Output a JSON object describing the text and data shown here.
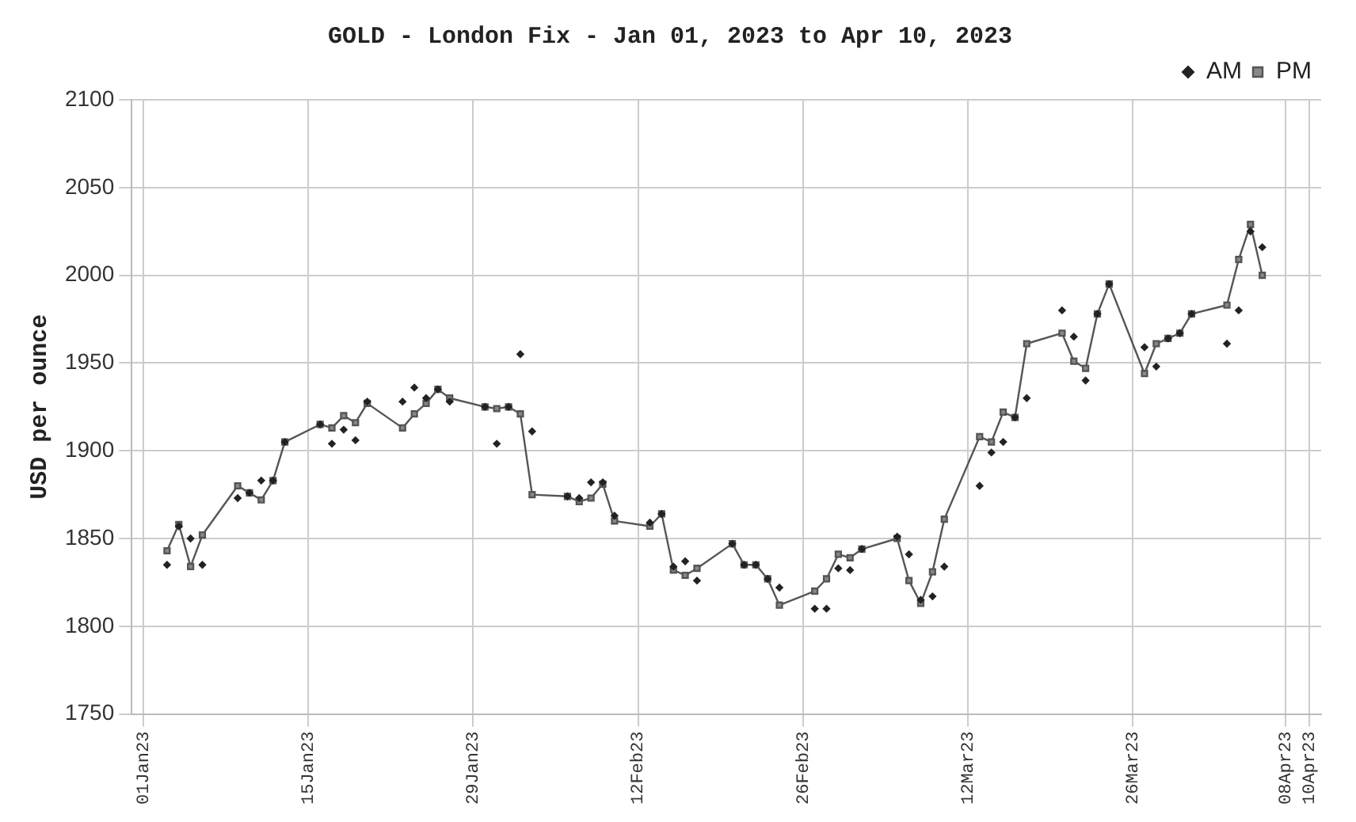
{
  "chart_data": {
    "type": "line",
    "title": "GOLD - London Fix - Jan 01, 2023 to Apr 10, 2023",
    "ylabel": "USD per ounce",
    "x": [
      "2023-01-03",
      "2023-01-04",
      "2023-01-05",
      "2023-01-06",
      "2023-01-09",
      "2023-01-10",
      "2023-01-11",
      "2023-01-12",
      "2023-01-13",
      "2023-01-16",
      "2023-01-17",
      "2023-01-18",
      "2023-01-19",
      "2023-01-20",
      "2023-01-23",
      "2023-01-24",
      "2023-01-25",
      "2023-01-26",
      "2023-01-27",
      "2023-01-30",
      "2023-01-31",
      "2023-02-01",
      "2023-02-02",
      "2023-02-03",
      "2023-02-06",
      "2023-02-07",
      "2023-02-08",
      "2023-02-09",
      "2023-02-10",
      "2023-02-13",
      "2023-02-14",
      "2023-02-15",
      "2023-02-16",
      "2023-02-17",
      "2023-02-20",
      "2023-02-21",
      "2023-02-22",
      "2023-02-23",
      "2023-02-24",
      "2023-02-27",
      "2023-02-28",
      "2023-03-01",
      "2023-03-02",
      "2023-03-03",
      "2023-03-06",
      "2023-03-07",
      "2023-03-08",
      "2023-03-09",
      "2023-03-10",
      "2023-03-13",
      "2023-03-14",
      "2023-03-15",
      "2023-03-16",
      "2023-03-17",
      "2023-03-20",
      "2023-03-21",
      "2023-03-22",
      "2023-03-23",
      "2023-03-24",
      "2023-03-27",
      "2023-03-28",
      "2023-03-29",
      "2023-03-30",
      "2023-03-31",
      "2023-04-03",
      "2023-04-04",
      "2023-04-05",
      "2023-04-06"
    ],
    "series": [
      {
        "name": "AM",
        "type": "scatter",
        "marker": "diamond",
        "color": "#222222",
        "values": [
          1835,
          1857,
          1850,
          1835,
          1873,
          1876,
          1883,
          1883,
          1905,
          1915,
          1904,
          1912,
          1906,
          1928,
          1928,
          1936,
          1930,
          1935,
          1928,
          1925,
          1904,
          1925,
          1955,
          1911,
          1874,
          1873,
          1882,
          1882,
          1863,
          1859,
          1864,
          1834,
          1837,
          1826,
          1847,
          1835,
          1835,
          1827,
          1822,
          1810,
          1810,
          1833,
          1832,
          1844,
          1851,
          1841,
          1815,
          1817,
          1834,
          1880,
          1899,
          1905,
          1919,
          1930,
          1980,
          1965,
          1940,
          1978,
          1995,
          1959,
          1948,
          1964,
          1967,
          1978,
          1961,
          1980,
          2025,
          2016
        ]
      },
      {
        "name": "PM",
        "type": "line",
        "marker": "square",
        "line_style": "solid",
        "color": "#555555",
        "values": [
          1843,
          1858,
          1834,
          1852,
          1880,
          1876,
          1872,
          1883,
          1905,
          1915,
          1913,
          1920,
          1916,
          1927,
          1913,
          1921,
          1927,
          1935,
          1930,
          1925,
          1924,
          1925,
          1921,
          1875,
          1874,
          1871,
          1873,
          1881,
          1860,
          1857,
          1864,
          1832,
          1829,
          1833,
          1847,
          1835,
          1835,
          1827,
          1812,
          1820,
          1827,
          1841,
          1839,
          1844,
          1850,
          1826,
          1813,
          1831,
          1861,
          1908,
          1905,
          1922,
          1919,
          1961,
          1967,
          1951,
          1947,
          1978,
          1995,
          1944,
          1961,
          1964,
          1967,
          1978,
          1983,
          2009,
          2029,
          2000
        ]
      }
    ],
    "xlim": [
      "2022-12-31",
      "2023-04-11"
    ],
    "xticks": [
      {
        "value": "2023-01-01",
        "label": "01Jan23"
      },
      {
        "value": "2023-01-15",
        "label": "15Jan23"
      },
      {
        "value": "2023-01-29",
        "label": "29Jan23"
      },
      {
        "value": "2023-02-12",
        "label": "12Feb23"
      },
      {
        "value": "2023-02-26",
        "label": "26Feb23"
      },
      {
        "value": "2023-03-12",
        "label": "12Mar23"
      },
      {
        "value": "2023-03-26",
        "label": "26Mar23"
      },
      {
        "value": "2023-04-08",
        "label": "08Apr23"
      },
      {
        "value": "2023-04-10",
        "label": "10Apr23"
      }
    ],
    "ylim": [
      1750,
      2100
    ],
    "yticks": [
      1750,
      1800,
      1850,
      1900,
      1950,
      2000,
      2050,
      2100
    ],
    "grid": true,
    "legend": "top right"
  }
}
